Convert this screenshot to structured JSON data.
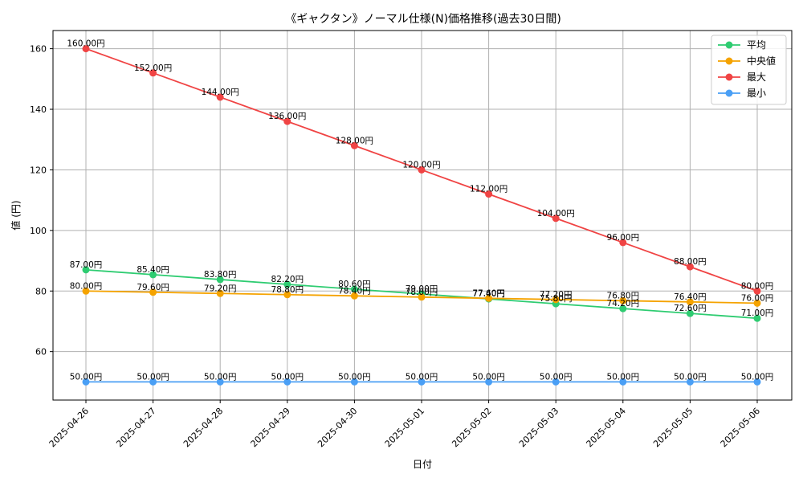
{
  "chart_data": {
    "type": "line",
    "title": "《ギャクタン》ノーマル仕様(N)価格推移(過去30日間)",
    "xlabel": "日付",
    "ylabel": "値 (円)",
    "categories": [
      "2025-04-26",
      "2025-04-27",
      "2025-04-28",
      "2025-04-29",
      "2025-04-30",
      "2025-05-01",
      "2025-05-02",
      "2025-05-03",
      "2025-05-04",
      "2025-05-05",
      "2025-05-06"
    ],
    "ylim": [
      44,
      166
    ],
    "yticks": [
      60,
      80,
      100,
      120,
      140,
      160
    ],
    "grid": true,
    "legend_position": "top-right",
    "series": [
      {
        "name": "平均",
        "color": "#2ecc71",
        "values": [
          87.0,
          85.4,
          83.8,
          82.2,
          80.6,
          79.0,
          77.4,
          75.8,
          74.2,
          72.6,
          71.0
        ],
        "labels": [
          "87.00円",
          "85.40円",
          "83.80円",
          "82.20円",
          "80.60円",
          "79.00円",
          "77.40円",
          "75.80円",
          "74.20円",
          "72.60円",
          "71.00円"
        ]
      },
      {
        "name": "中央値",
        "color": "#f5a300",
        "values": [
          80.0,
          79.6,
          79.2,
          78.8,
          78.4,
          78.0,
          77.6,
          77.2,
          76.8,
          76.4,
          76.0
        ],
        "labels": [
          "80.00円",
          "79.60円",
          "79.20円",
          "78.80円",
          "78.40円",
          "78.00円",
          "77.60円",
          "77.20円",
          "76.80円",
          "76.40円",
          "76.00円"
        ]
      },
      {
        "name": "最大",
        "color": "#f04444",
        "values": [
          160,
          152,
          144,
          136,
          128,
          120,
          112,
          104,
          96,
          88,
          80
        ],
        "labels": [
          "160.00円",
          "152.00円",
          "144.00円",
          "136.00円",
          "128.00円",
          "120.00円",
          "112.00円",
          "104.00円",
          "96.00円",
          "88.00円",
          "80.00円"
        ]
      },
      {
        "name": "最小",
        "color": "#4a9ff5",
        "values": [
          50,
          50,
          50,
          50,
          50,
          50,
          50,
          50,
          50,
          50,
          50
        ],
        "labels": [
          "50.00円",
          "50.00円",
          "50.00円",
          "50.00円",
          "50.00円",
          "50.00円",
          "50.00円",
          "50.00円",
          "50.00円",
          "50.00円",
          "50.00円"
        ]
      }
    ]
  }
}
